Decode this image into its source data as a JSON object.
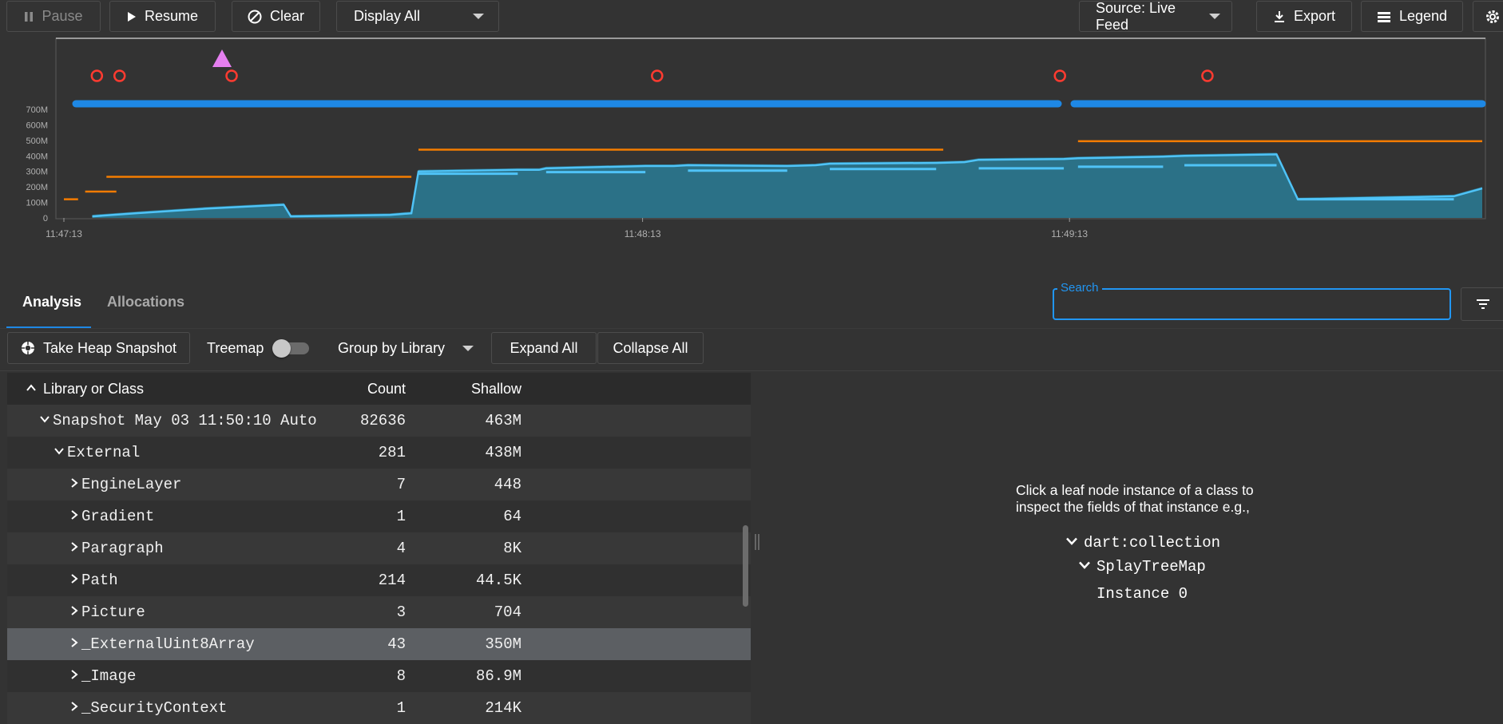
{
  "toolbar": {
    "pause_label": "Pause",
    "resume_label": "Resume",
    "clear_label": "Clear",
    "display_select": "Display All",
    "source_select": "Source: Live Feed",
    "export_label": "Export",
    "legend_label": "Legend"
  },
  "chart_data": {
    "type": "area",
    "y_ticks": [
      "700M",
      "600M",
      "500M",
      "400M",
      "300M",
      "200M",
      "100M",
      "0"
    ],
    "x_ticks": [
      "11:47:13",
      "11:48:13",
      "11:49:13"
    ],
    "ylim": [
      0,
      800
    ],
    "colors": {
      "used": "#4fc3f7",
      "capacity": "#2a7d96",
      "external": "#f57c00",
      "gc_events": "#1e88e5",
      "snapshot_marker": "#ff3b30",
      "manual_marker": "#e57ff0"
    },
    "series": [
      {
        "name": "",
        "values": [
          [
            0.02,
            20
          ],
          [
            0.05,
            40
          ],
          [
            0.1,
            70
          ],
          [
            0.155,
            95
          ],
          [
            0.16,
            20
          ],
          [
            0.23,
            30
          ],
          [
            0.245,
            40
          ],
          [
            0.25,
            310
          ],
          [
            0.32,
            320
          ],
          [
            0.335,
            320
          ],
          [
            0.34,
            330
          ],
          [
            0.41,
            345
          ],
          [
            0.43,
            345
          ],
          [
            0.44,
            350
          ],
          [
            0.51,
            345
          ],
          [
            0.53,
            350
          ],
          [
            0.54,
            360
          ],
          [
            0.615,
            365
          ],
          [
            0.635,
            370
          ],
          [
            0.645,
            385
          ],
          [
            0.705,
            390
          ],
          [
            0.715,
            395
          ],
          [
            0.775,
            405
          ],
          [
            0.79,
            410
          ],
          [
            0.855,
            420
          ],
          [
            0.87,
            130
          ],
          [
            0.98,
            150
          ],
          [
            1.0,
            200
          ]
        ]
      }
    ]
  },
  "tabs": {
    "analysis": "Analysis",
    "allocations": "Allocations"
  },
  "search": {
    "label": "Search",
    "value": ""
  },
  "heap_tools": {
    "snapshot_label": "Take Heap Snapshot",
    "treemap_label": "Treemap",
    "group_select": "Group by Library",
    "expand_label": "Expand All",
    "collapse_label": "Collapse All"
  },
  "table": {
    "headers": {
      "name": "Library or Class",
      "count": "Count",
      "shallow": "Shallow"
    },
    "rows": [
      {
        "name": "Snapshot May 03 11:50:10 Auto",
        "count": "82636",
        "shallow": "463M"
      },
      {
        "name": "External",
        "count": "281",
        "shallow": "438M"
      },
      {
        "name": "EngineLayer",
        "count": "7",
        "shallow": "448"
      },
      {
        "name": "Gradient",
        "count": "1",
        "shallow": "64"
      },
      {
        "name": "Paragraph",
        "count": "4",
        "shallow": "8K"
      },
      {
        "name": "Path",
        "count": "214",
        "shallow": "44.5K"
      },
      {
        "name": "Picture",
        "count": "3",
        "shallow": "704"
      },
      {
        "name": "_ExternalUint8Array",
        "count": "43",
        "shallow": "350M"
      },
      {
        "name": "_Image",
        "count": "8",
        "shallow": "86.9M"
      },
      {
        "name": "_SecurityContext",
        "count": "1",
        "shallow": "214K"
      }
    ]
  },
  "inspector": {
    "hint": "Click a leaf node instance of a class to inspect the fields of that instance e.g.,",
    "example_library": "dart:collection",
    "example_class": "SplayTreeMap",
    "example_instance": "Instance 0"
  }
}
